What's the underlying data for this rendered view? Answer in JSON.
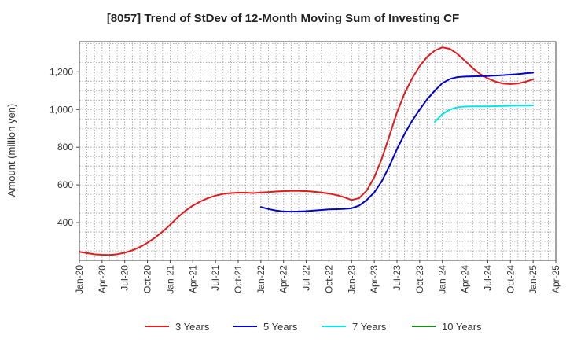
{
  "chart_data": {
    "type": "line",
    "title": "[8057]  Trend of StDev of 12-Month Moving Sum of Investing CF",
    "xlabel": "",
    "ylabel": "Amount (million yen)",
    "ylim": [
      200,
      1360
    ],
    "yticks": [
      400,
      600,
      800,
      1000,
      1200
    ],
    "ytick_labels": [
      "400",
      "600",
      "800",
      "1,000",
      "1,200"
    ],
    "xlim": [
      "2020-01",
      "2025-04"
    ],
    "xtick_labels": [
      "Jan-20",
      "Apr-20",
      "Jul-20",
      "Oct-20",
      "Jan-21",
      "Apr-21",
      "Jul-21",
      "Oct-21",
      "Jan-22",
      "Apr-22",
      "Jul-22",
      "Oct-22",
      "Jan-23",
      "Apr-23",
      "Jul-23",
      "Oct-23",
      "Jan-24",
      "Apr-24",
      "Jul-24",
      "Oct-24",
      "Jan-25",
      "Apr-25"
    ],
    "grid": true,
    "legend_position": "bottom",
    "series": [
      {
        "name": "3 Years",
        "color": "#e31a1c",
        "points": [
          [
            "2020-01",
            245
          ],
          [
            "2020-02",
            238
          ],
          [
            "2020-03",
            232
          ],
          [
            "2020-04",
            229
          ],
          [
            "2020-05",
            228
          ],
          [
            "2020-06",
            232
          ],
          [
            "2020-07",
            240
          ],
          [
            "2020-08",
            253
          ],
          [
            "2020-09",
            270
          ],
          [
            "2020-10",
            293
          ],
          [
            "2020-11",
            320
          ],
          [
            "2020-12",
            352
          ],
          [
            "2021-01",
            388
          ],
          [
            "2021-02",
            428
          ],
          [
            "2021-03",
            462
          ],
          [
            "2021-04",
            490
          ],
          [
            "2021-05",
            512
          ],
          [
            "2021-06",
            530
          ],
          [
            "2021-07",
            543
          ],
          [
            "2021-08",
            552
          ],
          [
            "2021-09",
            557
          ],
          [
            "2021-10",
            559
          ],
          [
            "2021-11",
            559
          ],
          [
            "2021-12",
            557
          ],
          [
            "2022-01",
            560
          ],
          [
            "2022-02",
            562
          ],
          [
            "2022-03",
            565
          ],
          [
            "2022-04",
            567
          ],
          [
            "2022-05",
            568
          ],
          [
            "2022-06",
            568
          ],
          [
            "2022-07",
            567
          ],
          [
            "2022-08",
            564
          ],
          [
            "2022-09",
            560
          ],
          [
            "2022-10",
            554
          ],
          [
            "2022-11",
            546
          ],
          [
            "2022-12",
            535
          ],
          [
            "2023-01",
            520
          ],
          [
            "2023-02",
            530
          ],
          [
            "2023-03",
            570
          ],
          [
            "2023-04",
            640
          ],
          [
            "2023-05",
            740
          ],
          [
            "2023-06",
            860
          ],
          [
            "2023-07",
            985
          ],
          [
            "2023-08",
            1085
          ],
          [
            "2023-09",
            1165
          ],
          [
            "2023-10",
            1230
          ],
          [
            "2023-11",
            1280
          ],
          [
            "2023-12",
            1313
          ],
          [
            "2024-01",
            1330
          ],
          [
            "2024-02",
            1322
          ],
          [
            "2024-03",
            1295
          ],
          [
            "2024-04",
            1258
          ],
          [
            "2024-05",
            1220
          ],
          [
            "2024-06",
            1188
          ],
          [
            "2024-07",
            1165
          ],
          [
            "2024-08",
            1148
          ],
          [
            "2024-09",
            1138
          ],
          [
            "2024-10",
            1135
          ],
          [
            "2024-11",
            1138
          ],
          [
            "2024-12",
            1147
          ],
          [
            "2025-01",
            1160
          ]
        ]
      },
      {
        "name": "5 Years",
        "color": "#0000cc",
        "points": [
          [
            "2022-01",
            483
          ],
          [
            "2022-02",
            472
          ],
          [
            "2022-03",
            464
          ],
          [
            "2022-04",
            459
          ],
          [
            "2022-05",
            458
          ],
          [
            "2022-06",
            459
          ],
          [
            "2022-07",
            461
          ],
          [
            "2022-08",
            464
          ],
          [
            "2022-09",
            467
          ],
          [
            "2022-10",
            470
          ],
          [
            "2022-11",
            471
          ],
          [
            "2022-12",
            473
          ],
          [
            "2023-01",
            476
          ],
          [
            "2023-02",
            490
          ],
          [
            "2023-03",
            520
          ],
          [
            "2023-04",
            560
          ],
          [
            "2023-05",
            620
          ],
          [
            "2023-06",
            700
          ],
          [
            "2023-07",
            790
          ],
          [
            "2023-08",
            870
          ],
          [
            "2023-09",
            940
          ],
          [
            "2023-10",
            1000
          ],
          [
            "2023-11",
            1055
          ],
          [
            "2023-12",
            1100
          ],
          [
            "2024-01",
            1140
          ],
          [
            "2024-02",
            1162
          ],
          [
            "2024-03",
            1172
          ],
          [
            "2024-04",
            1175
          ],
          [
            "2024-05",
            1176
          ],
          [
            "2024-06",
            1177
          ],
          [
            "2024-07",
            1178
          ],
          [
            "2024-08",
            1180
          ],
          [
            "2024-09",
            1182
          ],
          [
            "2024-10",
            1185
          ],
          [
            "2024-11",
            1188
          ],
          [
            "2024-12",
            1192
          ],
          [
            "2025-01",
            1195
          ]
        ]
      },
      {
        "name": "7 Years",
        "color": "#00e5ee",
        "points": [
          [
            "2023-12",
            935
          ],
          [
            "2024-01",
            975
          ],
          [
            "2024-02",
            1000
          ],
          [
            "2024-03",
            1012
          ],
          [
            "2024-04",
            1016
          ],
          [
            "2024-05",
            1017
          ],
          [
            "2024-06",
            1017
          ],
          [
            "2024-07",
            1017
          ],
          [
            "2024-08",
            1018
          ],
          [
            "2024-09",
            1019
          ],
          [
            "2024-10",
            1020
          ],
          [
            "2024-11",
            1021
          ],
          [
            "2024-12",
            1021
          ],
          [
            "2025-01",
            1022
          ]
        ]
      },
      {
        "name": "10 Years",
        "color": "#1a8a1a",
        "points": []
      }
    ]
  }
}
